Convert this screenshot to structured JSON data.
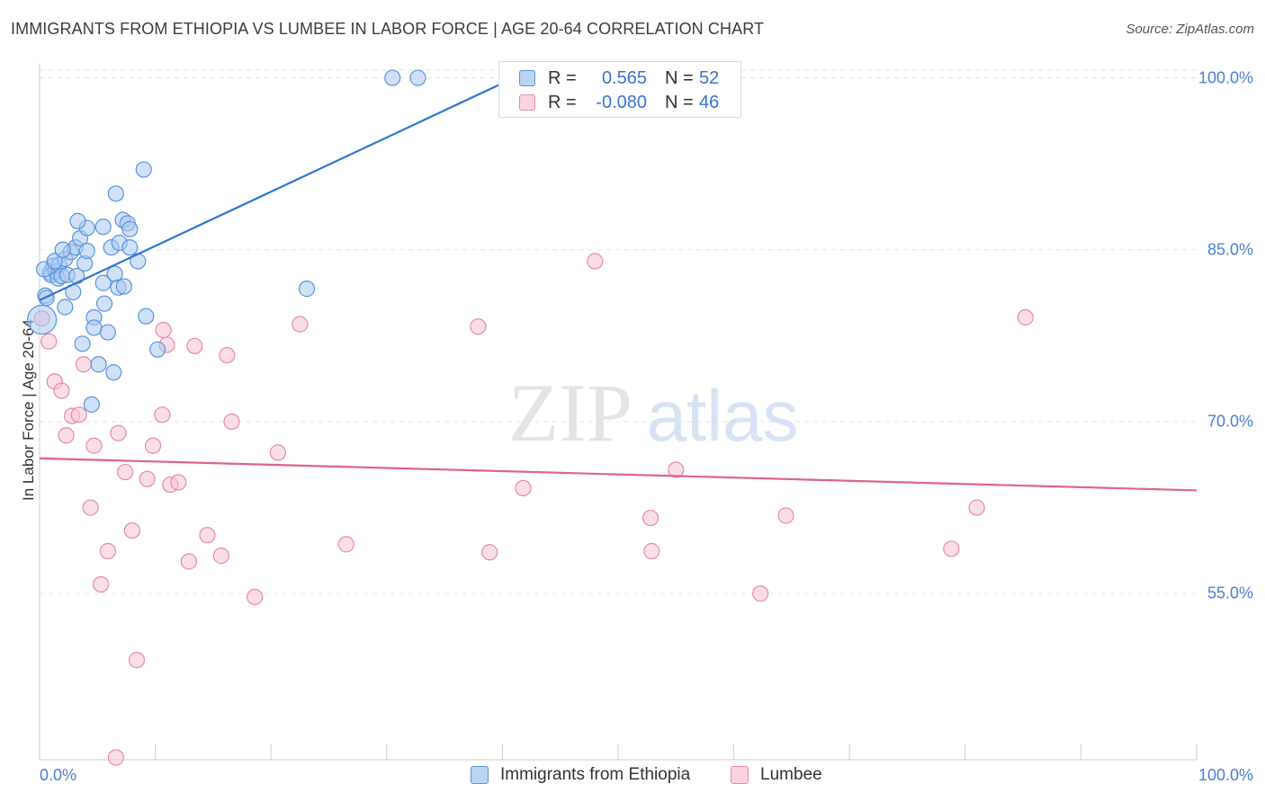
{
  "title": "IMMIGRANTS FROM ETHIOPIA VS LUMBEE IN LABOR FORCE | AGE 20-64 CORRELATION CHART",
  "source": "Source: ZipAtlas.com",
  "watermark": {
    "zip": "ZIP",
    "atlas": "atlas"
  },
  "legend_top": {
    "rows": [
      {
        "r_label": "R =",
        "r_value": "0.565",
        "n_label": "N =",
        "n_value": "52"
      },
      {
        "r_label": "R =",
        "r_value": "-0.080",
        "n_label": "N =",
        "n_value": "46"
      }
    ]
  },
  "colors": {
    "blue_fill": "#a9c8f0",
    "blue_stroke": "#5b93dc",
    "blue_line": "#2f76d2",
    "pink_fill": "#f6c3d3",
    "pink_stroke": "#e88aa8",
    "pink_line": "#e0638c",
    "tick_label": "#4a7fd0",
    "grid": "#e3e3e3"
  },
  "chart_data": {
    "type": "scatter",
    "title": "IMMIGRANTS FROM ETHIOPIA VS LUMBEE IN LABOR FORCE | AGE 20-64 CORRELATION CHART",
    "xlabel": "",
    "ylabel": "In Labor Force | Age 20-64",
    "xlim": [
      0,
      100
    ],
    "ylim": [
      40.5,
      101.3
    ],
    "x_tick_labels": [
      "0.0%",
      "100.0%"
    ],
    "y_ticks": [
      55,
      70,
      85,
      100
    ],
    "y_tick_labels": [
      "55.0%",
      "70.0%",
      "85.0%",
      "100.0%"
    ],
    "grid": true,
    "legend_position": "bottom",
    "series": [
      {
        "name": "Immigrants from Ethiopia",
        "color": "#5b93dc",
        "trend": {
          "x": [
            0,
            41
          ],
          "y": [
            80.6,
            100.0
          ]
        },
        "points": [
          {
            "x": 0.2,
            "y": 78.9,
            "big": true
          },
          {
            "x": 0.5,
            "y": 81.0
          },
          {
            "x": 0.6,
            "y": 80.8
          },
          {
            "x": 0.9,
            "y": 83.0
          },
          {
            "x": 1.0,
            "y": 82.8
          },
          {
            "x": 1.2,
            "y": 83.6
          },
          {
            "x": 1.4,
            "y": 83.1
          },
          {
            "x": 1.6,
            "y": 82.5
          },
          {
            "x": 1.7,
            "y": 83.7
          },
          {
            "x": 1.9,
            "y": 82.7
          },
          {
            "x": 2.2,
            "y": 80.0
          },
          {
            "x": 2.2,
            "y": 84.2
          },
          {
            "x": 2.4,
            "y": 82.8
          },
          {
            "x": 2.7,
            "y": 84.8
          },
          {
            "x": 2.9,
            "y": 81.3
          },
          {
            "x": 3.1,
            "y": 85.2
          },
          {
            "x": 3.2,
            "y": 82.7
          },
          {
            "x": 3.5,
            "y": 86.0
          },
          {
            "x": 3.7,
            "y": 76.8
          },
          {
            "x": 3.9,
            "y": 83.8
          },
          {
            "x": 4.1,
            "y": 86.9
          },
          {
            "x": 4.1,
            "y": 84.9
          },
          {
            "x": 4.5,
            "y": 71.5
          },
          {
            "x": 4.7,
            "y": 79.1
          },
          {
            "x": 4.7,
            "y": 78.2
          },
          {
            "x": 5.1,
            "y": 75.0
          },
          {
            "x": 5.5,
            "y": 87.0
          },
          {
            "x": 5.5,
            "y": 82.1
          },
          {
            "x": 5.6,
            "y": 80.3
          },
          {
            "x": 5.9,
            "y": 77.8
          },
          {
            "x": 6.2,
            "y": 85.2
          },
          {
            "x": 6.4,
            "y": 74.3
          },
          {
            "x": 6.5,
            "y": 82.9
          },
          {
            "x": 6.6,
            "y": 89.9
          },
          {
            "x": 6.8,
            "y": 81.7
          },
          {
            "x": 6.9,
            "y": 85.6
          },
          {
            "x": 7.2,
            "y": 87.6
          },
          {
            "x": 7.3,
            "y": 81.8
          },
          {
            "x": 7.6,
            "y": 87.3
          },
          {
            "x": 7.8,
            "y": 85.2
          },
          {
            "x": 7.8,
            "y": 86.8
          },
          {
            "x": 8.5,
            "y": 84.0
          },
          {
            "x": 9.0,
            "y": 92.0
          },
          {
            "x": 9.2,
            "y": 79.2
          },
          {
            "x": 10.2,
            "y": 76.3
          },
          {
            "x": 23.1,
            "y": 81.6
          },
          {
            "x": 30.5,
            "y": 100.0
          },
          {
            "x": 32.7,
            "y": 100.0
          },
          {
            "x": 0.4,
            "y": 83.3
          },
          {
            "x": 1.3,
            "y": 84.0
          },
          {
            "x": 2.0,
            "y": 85.0
          },
          {
            "x": 3.3,
            "y": 87.5
          }
        ]
      },
      {
        "name": "Lumbee",
        "color": "#e88aa8",
        "trend": {
          "x": [
            0,
            100
          ],
          "y": [
            66.8,
            64.0
          ]
        },
        "points": [
          {
            "x": 0.2,
            "y": 79.0
          },
          {
            "x": 0.8,
            "y": 77.0
          },
          {
            "x": 1.3,
            "y": 73.5
          },
          {
            "x": 1.9,
            "y": 72.7
          },
          {
            "x": 2.3,
            "y": 68.8
          },
          {
            "x": 2.8,
            "y": 70.5
          },
          {
            "x": 3.4,
            "y": 70.6
          },
          {
            "x": 3.8,
            "y": 75.0
          },
          {
            "x": 4.4,
            "y": 62.5
          },
          {
            "x": 4.7,
            "y": 67.9
          },
          {
            "x": 5.3,
            "y": 55.8
          },
          {
            "x": 5.9,
            "y": 58.7
          },
          {
            "x": 6.6,
            "y": 40.7
          },
          {
            "x": 6.8,
            "y": 69.0
          },
          {
            "x": 7.4,
            "y": 65.6
          },
          {
            "x": 8.0,
            "y": 60.5
          },
          {
            "x": 8.4,
            "y": 49.2
          },
          {
            "x": 9.3,
            "y": 65.0
          },
          {
            "x": 9.8,
            "y": 67.9
          },
          {
            "x": 10.6,
            "y": 70.6
          },
          {
            "x": 10.7,
            "y": 78.0
          },
          {
            "x": 11.0,
            "y": 76.7
          },
          {
            "x": 11.3,
            "y": 64.5
          },
          {
            "x": 12.0,
            "y": 64.7
          },
          {
            "x": 12.9,
            "y": 57.8
          },
          {
            "x": 13.4,
            "y": 76.6
          },
          {
            "x": 14.5,
            "y": 60.1
          },
          {
            "x": 15.7,
            "y": 58.3
          },
          {
            "x": 16.2,
            "y": 75.8
          },
          {
            "x": 16.6,
            "y": 70.0
          },
          {
            "x": 18.6,
            "y": 54.7
          },
          {
            "x": 20.6,
            "y": 67.3
          },
          {
            "x": 22.5,
            "y": 78.5
          },
          {
            "x": 26.5,
            "y": 59.3
          },
          {
            "x": 37.9,
            "y": 78.3
          },
          {
            "x": 38.9,
            "y": 58.6
          },
          {
            "x": 41.8,
            "y": 64.2
          },
          {
            "x": 48.0,
            "y": 84.0
          },
          {
            "x": 52.8,
            "y": 61.6
          },
          {
            "x": 52.9,
            "y": 58.7
          },
          {
            "x": 55.0,
            "y": 65.8
          },
          {
            "x": 62.3,
            "y": 55.0
          },
          {
            "x": 64.5,
            "y": 61.8
          },
          {
            "x": 78.8,
            "y": 58.9
          },
          {
            "x": 81.0,
            "y": 62.5
          },
          {
            "x": 85.2,
            "y": 79.1
          }
        ]
      }
    ]
  }
}
